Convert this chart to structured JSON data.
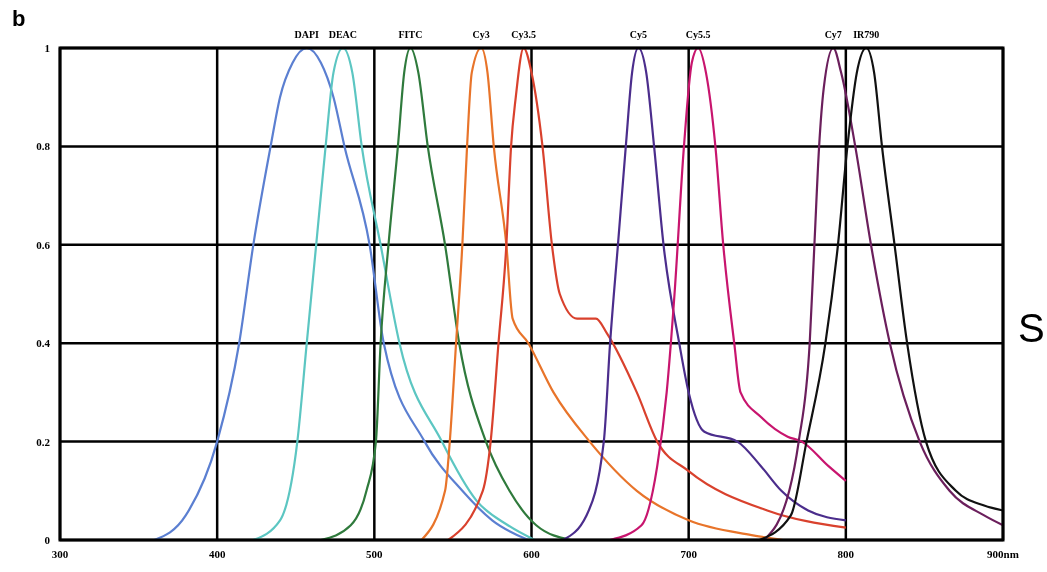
{
  "chart_data": {
    "type": "line",
    "annotations": [
      "b",
      "S"
    ],
    "xlim": [
      300,
      900
    ],
    "xticks": [
      300,
      400,
      500,
      600,
      700,
      800,
      {
        "value": 900,
        "label": "900nm"
      }
    ],
    "ylim": [
      0,
      1
    ],
    "yticks": [
      0,
      0.2,
      0.4,
      0.6,
      0.8,
      1
    ],
    "grid": true,
    "marker": "none",
    "line_style": "solid",
    "series": [
      {
        "name": "DAPI",
        "color": "#5b7fd1",
        "x": [
          360,
          380,
          400,
          414,
          423,
          434,
          440,
          448,
          457,
          466,
          474,
          481,
          497,
          506,
          532,
          556,
          575,
          598
        ],
        "values": [
          0,
          0.05,
          0.2,
          0.4,
          0.6,
          0.8,
          0.9,
          0.97,
          1,
          0.97,
          0.9,
          0.8,
          0.6,
          0.4,
          0.2,
          0.1,
          0.04,
          0
        ]
      },
      {
        "name": "DEAC",
        "color": "#5cc6c2",
        "x": [
          423,
          440,
          451,
          457,
          463,
          469,
          474,
          480,
          486,
          492,
          504,
          516,
          543,
          565,
          585,
          602
        ],
        "values": [
          0,
          0.04,
          0.2,
          0.4,
          0.6,
          0.8,
          0.95,
          1,
          0.95,
          0.8,
          0.6,
          0.4,
          0.2,
          0.08,
          0.03,
          0
        ]
      },
      {
        "name": "FITC",
        "color": "#2f7a3c",
        "x": [
          466,
          485,
          495,
          501,
          504,
          509,
          515,
          519,
          523,
          528,
          534,
          545,
          554,
          571,
          586,
          603,
          625
        ],
        "values": [
          0,
          0.03,
          0.1,
          0.2,
          0.4,
          0.6,
          0.8,
          0.95,
          1,
          0.95,
          0.8,
          0.6,
          0.4,
          0.2,
          0.1,
          0.03,
          0
        ]
      },
      {
        "name": "Cy3",
        "color": "#e8742a",
        "x": [
          530,
          545,
          548,
          552,
          556,
          559,
          562,
          568,
          572,
          576,
          584,
          588,
          598,
          614,
          637,
          667,
          700,
          740,
          760
        ],
        "values": [
          0,
          0.1,
          0.2,
          0.4,
          0.6,
          0.8,
          0.95,
          1,
          0.95,
          0.8,
          0.6,
          0.45,
          0.4,
          0.3,
          0.2,
          0.1,
          0.04,
          0.01,
          0
        ]
      },
      {
        "name": "Cy3.5",
        "color": "#d9412d",
        "x": [
          547,
          569,
          574,
          579,
          584,
          587,
          590,
          595,
          600,
          607,
          613,
          618,
          629,
          641,
          648,
          667,
          680,
          700,
          750,
          800
        ],
        "values": [
          0,
          0.1,
          0.2,
          0.4,
          0.6,
          0.8,
          0.9,
          1,
          0.95,
          0.8,
          0.6,
          0.5,
          0.45,
          0.45,
          0.42,
          0.3,
          0.2,
          0.14,
          0.06,
          0.025
        ]
      },
      {
        "name": "Cy5",
        "color": "#4b2d8c",
        "x": [
          620,
          635,
          646,
          650,
          655,
          660,
          664,
          668,
          673,
          678,
          684,
          694,
          700,
          710,
          731,
          746,
          759,
          776,
          800
        ],
        "values": [
          0,
          0.05,
          0.2,
          0.4,
          0.6,
          0.8,
          0.95,
          1,
          0.95,
          0.8,
          0.6,
          0.4,
          0.3,
          0.22,
          0.2,
          0.15,
          0.1,
          0.06,
          0.04
        ]
      },
      {
        "name": "Cy5.5",
        "color": "#c8156e",
        "x": [
          650,
          670,
          680,
          686,
          691,
          697,
          702,
          706,
          711,
          717,
          722,
          729,
          733,
          746,
          763,
          772,
          789,
          800
        ],
        "values": [
          0,
          0.03,
          0.15,
          0.3,
          0.5,
          0.8,
          0.97,
          1,
          0.95,
          0.8,
          0.6,
          0.4,
          0.3,
          0.25,
          0.21,
          0.2,
          0.15,
          0.12
        ]
      },
      {
        "name": "Cy7",
        "color": "#6b1f5c",
        "x": [
          748,
          764,
          770,
          777,
          780,
          783,
          786,
          792,
          797,
          806,
          816,
          828,
          847,
          866,
          888,
          900
        ],
        "values": [
          0,
          0.1,
          0.2,
          0.4,
          0.6,
          0.8,
          0.92,
          1,
          0.95,
          0.8,
          0.6,
          0.4,
          0.2,
          0.1,
          0.05,
          0.03
        ]
      },
      {
        "name": "IR790",
        "color": "#111111",
        "x": [
          745,
          765,
          775,
          787,
          795,
          801,
          807,
          813,
          818,
          823,
          831,
          839,
          851,
          870,
          888,
          900
        ],
        "values": [
          0,
          0.05,
          0.2,
          0.4,
          0.6,
          0.8,
          0.95,
          1,
          0.95,
          0.8,
          0.6,
          0.4,
          0.2,
          0.1,
          0.07,
          0.06
        ]
      }
    ]
  }
}
